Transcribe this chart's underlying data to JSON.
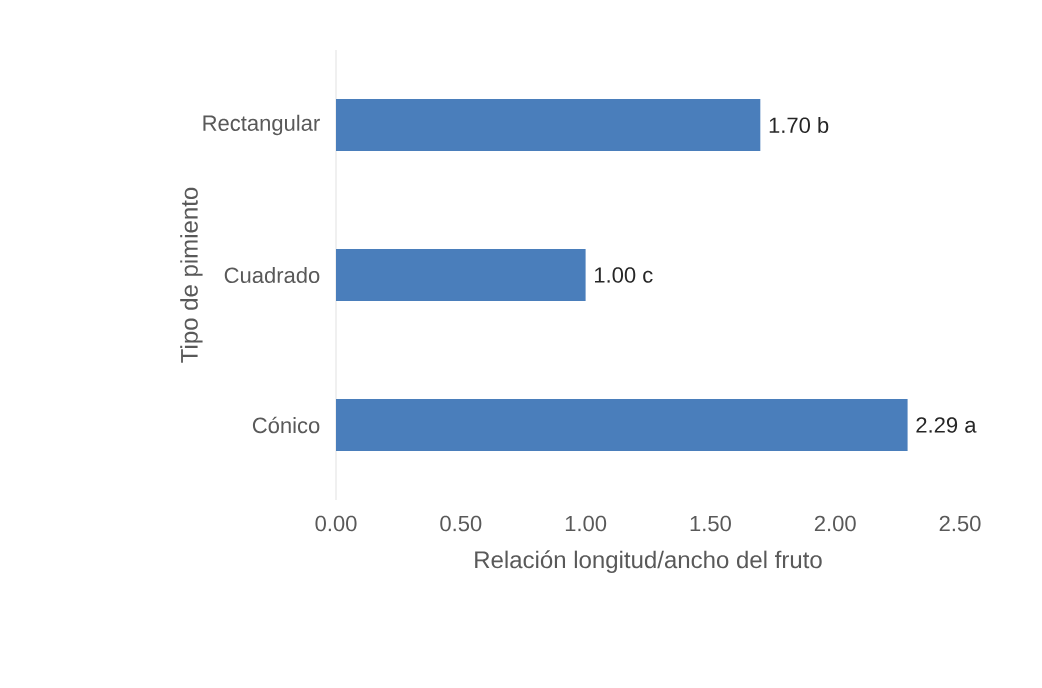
{
  "chart_data": {
    "type": "bar",
    "orientation": "horizontal",
    "xlabel": "Relación longitud/ancho del fruto",
    "ylabel": "Tipo de pimiento",
    "categories": [
      "Rectangular",
      "Cuadrado",
      "Cónico"
    ],
    "values": [
      1.7,
      1.0,
      2.29
    ],
    "value_labels": [
      "1.70 b",
      "1.00 c",
      "2.29 a"
    ],
    "color": "#4a7ebb",
    "xlim": [
      0,
      2.5
    ],
    "xticks": [
      {
        "value": 0,
        "label": "0.00"
      },
      {
        "value": 0.5,
        "label": "0.50"
      },
      {
        "value": 1,
        "label": "1.00"
      },
      {
        "value": 1.5,
        "label": "1.50"
      },
      {
        "value": 2,
        "label": "2.00"
      },
      {
        "value": 2.5,
        "label": "2.50"
      }
    ],
    "grid": false
  }
}
